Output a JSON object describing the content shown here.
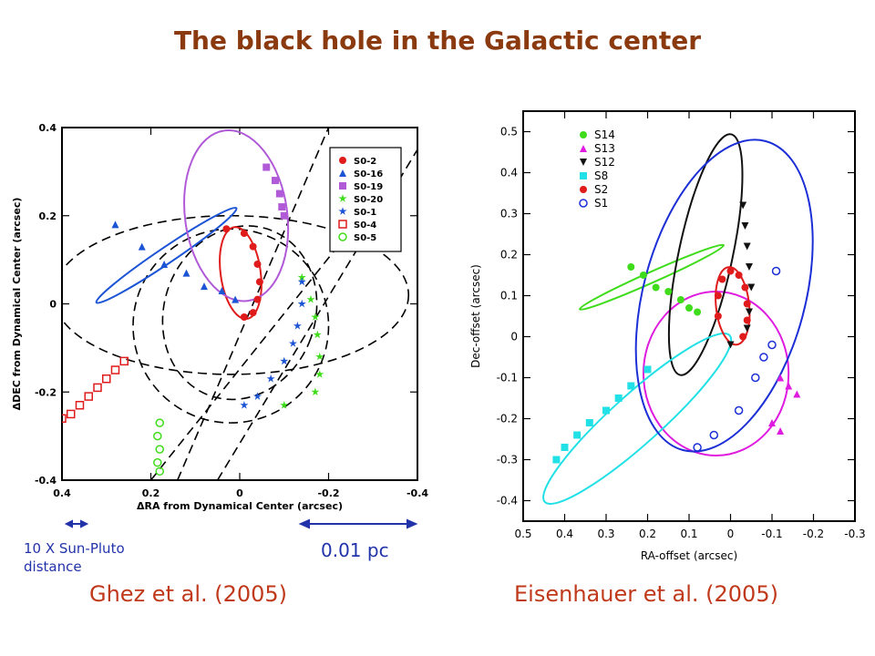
{
  "title": "The black hole in the Galactic center",
  "colors": {
    "title": "#8B3A0F",
    "cite": "#c0391b",
    "scalebar": "#2233aa"
  },
  "left_panel": {
    "citation": "Ghez et al. (2005)",
    "scale_left": "10 X Sun-Pluto distance",
    "scale_right": "0.01 pc"
  },
  "right_panel": {
    "citation": "Eisenhauer et al. (2005)"
  },
  "chart_data": [
    {
      "type": "scatter",
      "xlabel": "ΔRA from Dynamical Center (arcsec)",
      "ylabel": "ΔDEC from Dynamical Center (arcsec)",
      "xlim": [
        0.4,
        -0.4
      ],
      "ylim": [
        -0.4,
        0.4
      ],
      "xticks": [
        "0.4",
        "0.2",
        "0",
        "-0.2",
        "-0.4"
      ],
      "yticks": [
        "-0.4",
        "-0.2",
        "0",
        "0.2",
        "0.4"
      ],
      "legend_position": "top-right",
      "series": [
        {
          "name": "S0-2",
          "color": "#e01b1b",
          "marker": "circle-filled",
          "points": [
            [
              0.03,
              0.17
            ],
            [
              -0.01,
              0.16
            ],
            [
              -0.03,
              0.13
            ],
            [
              -0.04,
              0.09
            ],
            [
              -0.045,
              0.05
            ],
            [
              -0.04,
              0.01
            ],
            [
              -0.03,
              -0.02
            ],
            [
              -0.01,
              -0.03
            ]
          ],
          "orbit": {
            "cx": -0.002,
            "cy": 0.07,
            "rx": 0.045,
            "ry": 0.105,
            "rot": -8
          }
        },
        {
          "name": "S0-16",
          "color": "#1c54d6",
          "marker": "triangle",
          "points": [
            [
              0.28,
              0.18
            ],
            [
              0.22,
              0.13
            ],
            [
              0.17,
              0.09
            ],
            [
              0.12,
              0.07
            ],
            [
              0.08,
              0.04
            ],
            [
              0.04,
              0.03
            ],
            [
              0.01,
              0.01
            ]
          ],
          "orbit": {
            "cx": 0.165,
            "cy": 0.11,
            "rx": 0.19,
            "ry": 0.018,
            "rot": -34
          }
        },
        {
          "name": "S0-19",
          "color": "#b05ad8",
          "marker": "square",
          "points": [
            [
              -0.06,
              0.31
            ],
            [
              -0.08,
              0.28
            ],
            [
              -0.09,
              0.25
            ],
            [
              -0.095,
              0.22
            ],
            [
              -0.1,
              0.2
            ]
          ],
          "orbit": {
            "cx": 0.008,
            "cy": 0.2,
            "rx": 0.115,
            "ry": 0.195,
            "rot": -8
          }
        },
        {
          "name": "S0-20",
          "color": "#3fdc1c",
          "marker": "star",
          "points": [
            [
              -0.16,
              0.01
            ],
            [
              -0.17,
              -0.03
            ],
            [
              -0.175,
              -0.07
            ],
            [
              -0.18,
              -0.12
            ],
            [
              -0.18,
              -0.16
            ],
            [
              -0.17,
              -0.2
            ],
            [
              -0.14,
              0.06
            ],
            [
              -0.1,
              -0.23
            ]
          ]
        },
        {
          "name": "S0-1",
          "color": "#1c54d6",
          "marker": "star",
          "points": [
            [
              -0.01,
              -0.23
            ],
            [
              -0.04,
              -0.21
            ],
            [
              -0.07,
              -0.17
            ],
            [
              -0.1,
              -0.13
            ],
            [
              -0.12,
              -0.09
            ],
            [
              -0.13,
              -0.05
            ],
            [
              -0.14,
              0.0
            ],
            [
              -0.14,
              0.05
            ]
          ]
        },
        {
          "name": "S0-4",
          "color": "#e01b1b",
          "marker": "square-open",
          "points": [
            [
              0.4,
              -0.26
            ],
            [
              0.38,
              -0.25
            ],
            [
              0.36,
              -0.23
            ],
            [
              0.34,
              -0.21
            ],
            [
              0.32,
              -0.19
            ],
            [
              0.3,
              -0.17
            ],
            [
              0.28,
              -0.15
            ],
            [
              0.26,
              -0.13
            ]
          ]
        },
        {
          "name": "S0-5",
          "color": "#3fdc1c",
          "marker": "circle-open",
          "points": [
            [
              0.18,
              -0.27
            ],
            [
              0.185,
              -0.3
            ],
            [
              0.18,
              -0.33
            ],
            [
              0.185,
              -0.36
            ],
            [
              0.18,
              -0.38
            ]
          ]
        }
      ]
    },
    {
      "type": "scatter",
      "xlabel": "RA-offset (arcsec)",
      "ylabel": "Dec-offset (arcsec)",
      "xlim": [
        0.5,
        -0.3
      ],
      "ylim": [
        -0.45,
        0.55
      ],
      "xticks": [
        "0.5",
        "0.4",
        "0.3",
        "0.2",
        "0.1",
        "0",
        "-0.1",
        "-0.2",
        "-0.3"
      ],
      "yticks": [
        "-0.4",
        "-0.3",
        "-0.2",
        "-0.1",
        "0",
        "0.1",
        "0.2",
        "0.3",
        "0.4",
        "0.5"
      ],
      "legend_position": "top-left",
      "series": [
        {
          "name": "S14",
          "color": "#3fdc1c",
          "marker": "circle-filled",
          "points": [
            [
              0.24,
              0.17
            ],
            [
              0.21,
              0.15
            ],
            [
              0.18,
              0.12
            ],
            [
              0.15,
              0.11
            ],
            [
              0.12,
              0.09
            ],
            [
              0.1,
              0.07
            ],
            [
              0.08,
              0.06
            ]
          ],
          "orbit": {
            "cx": 0.19,
            "cy": 0.145,
            "rx": 0.19,
            "ry": 0.013,
            "rot": -24
          }
        },
        {
          "name": "S13",
          "color": "#e01be0",
          "marker": "triangle",
          "points": [
            [
              -0.12,
              -0.1
            ],
            [
              -0.14,
              -0.12
            ],
            [
              -0.16,
              -0.14
            ],
            [
              -0.12,
              -0.23
            ],
            [
              -0.1,
              -0.21
            ]
          ],
          "orbit": {
            "cx": 0.035,
            "cy": -0.09,
            "rx": 0.175,
            "ry": 0.2,
            "rot": 0
          }
        },
        {
          "name": "S12",
          "color": "#111111",
          "marker": "triangle-down",
          "points": [
            [
              -0.03,
              0.32
            ],
            [
              -0.035,
              0.27
            ],
            [
              -0.04,
              0.22
            ],
            [
              -0.045,
              0.17
            ],
            [
              -0.05,
              0.12
            ],
            [
              -0.045,
              0.06
            ],
            [
              -0.04,
              0.02
            ],
            [
              0.0,
              -0.02
            ]
          ],
          "orbit": {
            "cx": 0.06,
            "cy": 0.2,
            "rx": 0.065,
            "ry": 0.3,
            "rot": 12
          }
        },
        {
          "name": "S8",
          "color": "#21e0e6",
          "marker": "square",
          "points": [
            [
              0.42,
              -0.3
            ],
            [
              0.4,
              -0.27
            ],
            [
              0.37,
              -0.24
            ],
            [
              0.34,
              -0.21
            ],
            [
              0.3,
              -0.18
            ],
            [
              0.27,
              -0.15
            ],
            [
              0.24,
              -0.12
            ],
            [
              0.2,
              -0.08
            ]
          ],
          "orbit": {
            "cx": 0.225,
            "cy": -0.2,
            "rx": 0.3,
            "ry": 0.06,
            "rot": -42
          }
        },
        {
          "name": "S2",
          "color": "#e01b1b",
          "marker": "circle-filled",
          "points": [
            [
              0.0,
              0.16
            ],
            [
              -0.02,
              0.15
            ],
            [
              -0.035,
              0.12
            ],
            [
              -0.04,
              0.08
            ],
            [
              -0.04,
              0.04
            ],
            [
              -0.03,
              0.0
            ],
            [
              0.02,
              0.14
            ],
            [
              0.03,
              0.1
            ],
            [
              0.03,
              0.05
            ]
          ],
          "orbit": {
            "cx": -0.005,
            "cy": 0.075,
            "rx": 0.04,
            "ry": 0.095,
            "rot": -6
          }
        },
        {
          "name": "S1",
          "color": "#1c2fd6",
          "marker": "circle-open",
          "points": [
            [
              -0.11,
              0.16
            ],
            [
              -0.08,
              -0.05
            ],
            [
              -0.06,
              -0.1
            ],
            [
              -0.02,
              -0.18
            ],
            [
              0.04,
              -0.24
            ],
            [
              0.08,
              -0.27
            ],
            [
              -0.1,
              -0.02
            ]
          ],
          "orbit": {
            "cx": 0.015,
            "cy": 0.1,
            "rx": 0.195,
            "ry": 0.39,
            "rot": 15
          }
        }
      ]
    }
  ]
}
